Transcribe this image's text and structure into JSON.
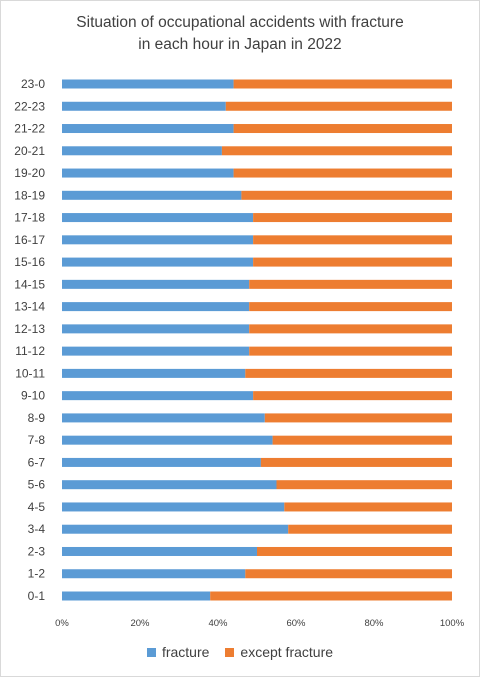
{
  "chart_data": {
    "type": "bar",
    "orientation": "horizontal",
    "stacked": "percent",
    "title_lines": [
      "Situation of occupational accidents with fracture",
      "in each hour in Japan in 2022"
    ],
    "categories": [
      "0-1",
      "1-2",
      "2-3",
      "3-4",
      "4-5",
      "5-6",
      "6-7",
      "7-8",
      "8-9",
      "9-10",
      "10-11",
      "11-12",
      "12-13",
      "13-14",
      "14-15",
      "15-16",
      "16-17",
      "17-18",
      "18-19",
      "19-20",
      "20-21",
      "21-22",
      "22-23",
      "23-0"
    ],
    "series": [
      {
        "name": "fracture",
        "color": "#5b9bd5",
        "values": [
          38,
          47,
          50,
          58,
          57,
          55,
          51,
          54,
          52,
          49,
          47,
          48,
          48,
          48,
          48,
          49,
          49,
          49,
          46,
          44,
          41,
          44,
          42,
          44
        ]
      },
      {
        "name": "except fracture",
        "color": "#ed7d31",
        "values": [
          62,
          53,
          50,
          42,
          43,
          45,
          49,
          46,
          48,
          51,
          53,
          52,
          52,
          52,
          52,
          51,
          51,
          51,
          54,
          56,
          59,
          56,
          58,
          56
        ]
      }
    ],
    "xticks": [
      "0%",
      "20%",
      "40%",
      "60%",
      "80%",
      "100%"
    ],
    "xlim": [
      0,
      100
    ],
    "legend_position": "bottom",
    "grid": false
  }
}
